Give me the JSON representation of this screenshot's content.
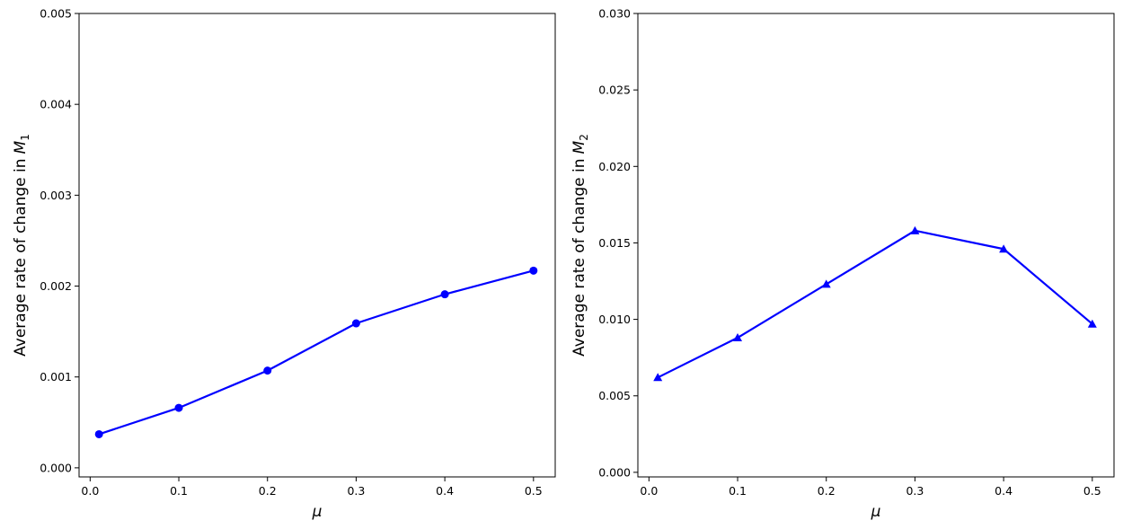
{
  "chart_data": [
    {
      "type": "line",
      "title": "",
      "xlabel": "μ",
      "ylabel": "Average rate of change in",
      "ylabel_math": {
        "base": "M",
        "sub": "1"
      },
      "xlim": [
        -0.0125,
        0.5245
      ],
      "ylim": [
        -0.0001,
        0.005
      ],
      "xticks": [
        0.0,
        0.1,
        0.2,
        0.3,
        0.4,
        0.5
      ],
      "xtick_labels": [
        "0.0",
        "0.1",
        "0.2",
        "0.3",
        "0.4",
        "0.5"
      ],
      "yticks": [
        0.0,
        0.001,
        0.002,
        0.003,
        0.004,
        0.005
      ],
      "ytick_labels": [
        "0.000",
        "0.001",
        "0.002",
        "0.003",
        "0.004",
        "0.005"
      ],
      "grid": false,
      "series": [
        {
          "x": [
            0.01,
            0.1,
            0.2,
            0.3,
            0.4,
            0.5
          ],
          "y": [
            0.00037,
            0.00066,
            0.00107,
            0.00159,
            0.00191,
            0.00217
          ],
          "color": "#0000ff",
          "marker": "circle"
        }
      ]
    },
    {
      "type": "line",
      "title": "",
      "xlabel": "μ",
      "ylabel": "Average rate of change in",
      "ylabel_math": {
        "base": "M",
        "sub": "2"
      },
      "xlim": [
        -0.0125,
        0.5245
      ],
      "ylim": [
        -0.0003,
        0.03
      ],
      "xticks": [
        0.0,
        0.1,
        0.2,
        0.3,
        0.4,
        0.5
      ],
      "xtick_labels": [
        "0.0",
        "0.1",
        "0.2",
        "0.3",
        "0.4",
        "0.5"
      ],
      "yticks": [
        0.0,
        0.005,
        0.01,
        0.015,
        0.02,
        0.025,
        0.03
      ],
      "ytick_labels": [
        "0.000",
        "0.005",
        "0.010",
        "0.015",
        "0.020",
        "0.025",
        "0.030"
      ],
      "grid": false,
      "series": [
        {
          "x": [
            0.01,
            0.1,
            0.2,
            0.3,
            0.4,
            0.5
          ],
          "y": [
            0.0062,
            0.0088,
            0.0123,
            0.0158,
            0.0146,
            0.0097
          ],
          "color": "#0000ff",
          "marker": "triangle"
        }
      ]
    }
  ]
}
